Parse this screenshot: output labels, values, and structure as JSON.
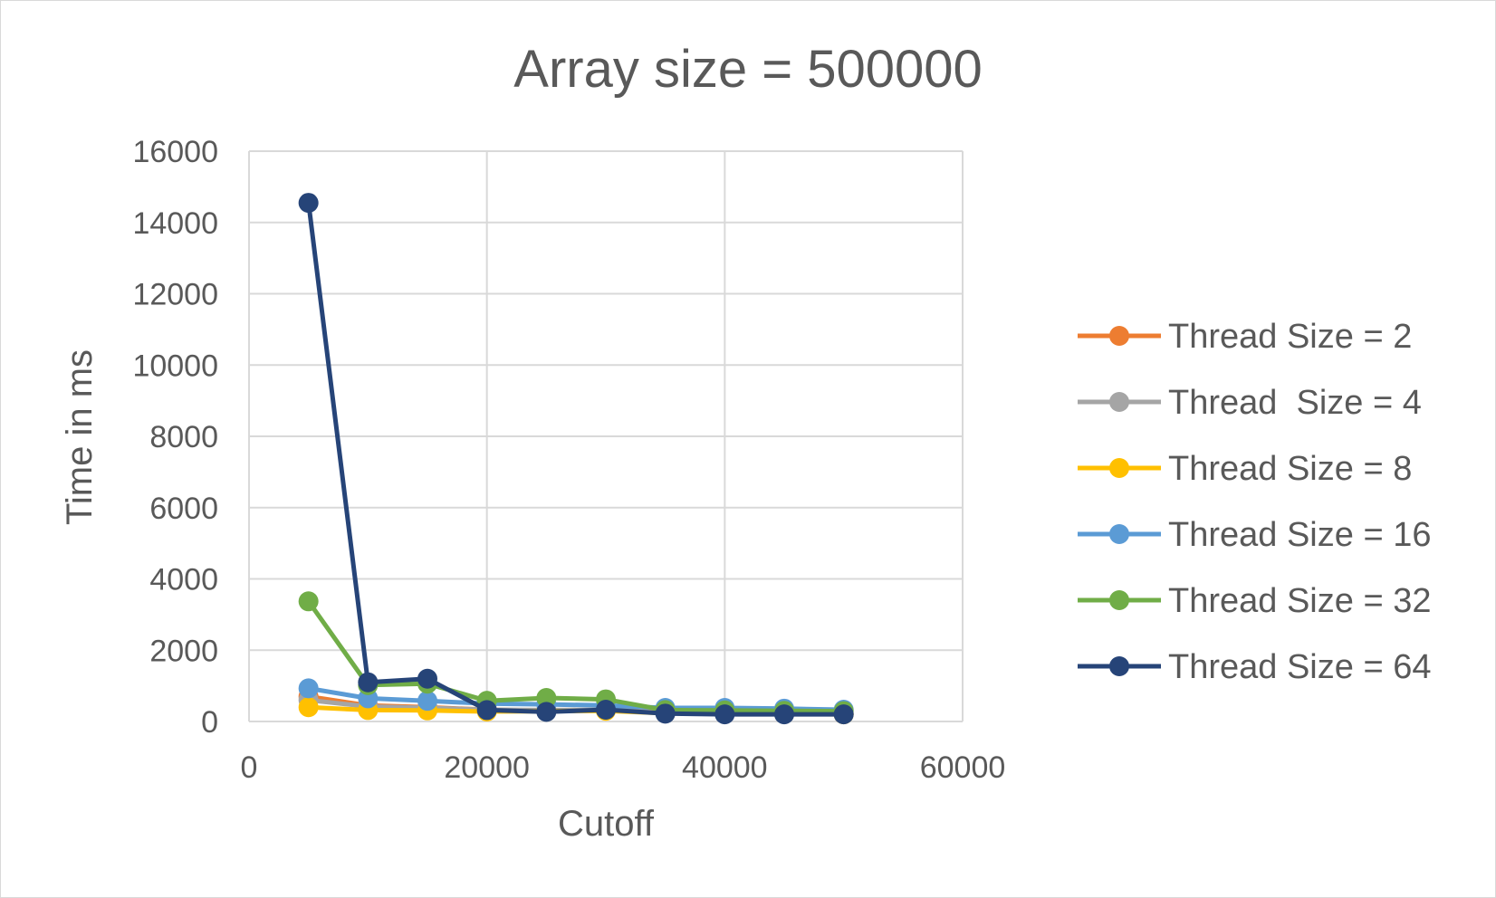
{
  "chart_data": {
    "type": "scatter",
    "mode": "lines+markers",
    "title": "Array size = 500000",
    "xlabel": "Cutoff",
    "ylabel": "Time in ms",
    "xlim": [
      0,
      60000
    ],
    "ylim": [
      0,
      16000
    ],
    "x_ticks": [
      "0",
      "20000",
      "40000",
      "60000"
    ],
    "y_ticks": [
      "0",
      "2000",
      "4000",
      "6000",
      "8000",
      "10000",
      "12000",
      "14000",
      "16000"
    ],
    "grid": true,
    "legend_position": "right",
    "x": [
      5000,
      10000,
      15000,
      20000,
      25000,
      30000,
      35000,
      40000,
      45000,
      50000
    ],
    "series": [
      {
        "name": "Thread Size = 2",
        "color": "#ED7D31",
        "values": [
          700,
          450,
          400,
          330,
          300,
          320,
          260,
          230,
          220,
          210
        ]
      },
      {
        "name": "Thread  Size = 4",
        "color": "#A5A5A5",
        "values": [
          600,
          420,
          380,
          330,
          320,
          330,
          260,
          240,
          230,
          220
        ]
      },
      {
        "name": "Thread Size = 8",
        "color": "#FFC000",
        "values": [
          400,
          320,
          310,
          280,
          290,
          300,
          230,
          220,
          210,
          200
        ]
      },
      {
        "name": "Thread Size = 16",
        "color": "#5B9BD5",
        "values": [
          930,
          650,
          580,
          500,
          480,
          450,
          380,
          380,
          360,
          330
        ]
      },
      {
        "name": "Thread Size = 32",
        "color": "#70AD47",
        "values": [
          3370,
          1020,
          1060,
          580,
          660,
          620,
          320,
          310,
          300,
          290
        ]
      },
      {
        "name": "Thread Size = 64",
        "color": "#264478",
        "values": [
          14550,
          1100,
          1200,
          320,
          270,
          330,
          220,
          200,
          200,
          200
        ]
      }
    ]
  }
}
